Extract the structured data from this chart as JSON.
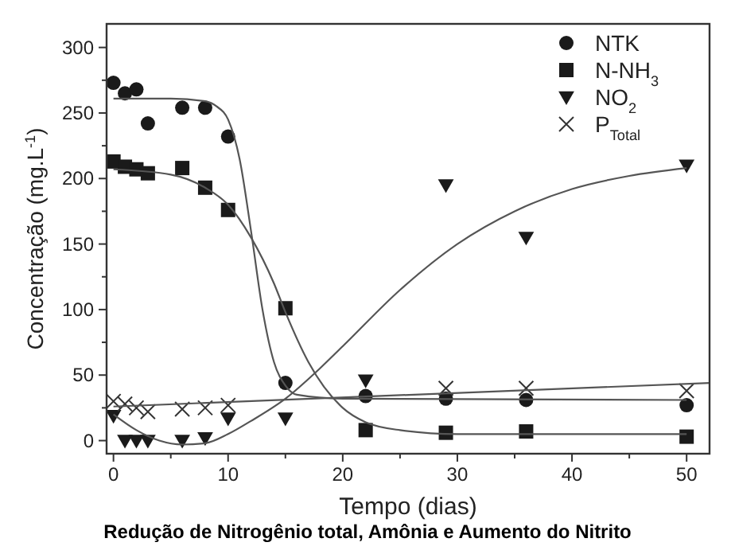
{
  "chart_data": {
    "type": "scatter",
    "title": "Redução de Nitrogênio total, Amônia e Aumento do Nitrito",
    "xlabel": "Tempo (dias)",
    "ylabel": "Concentração (mg.L$^{-1}$)",
    "xlim": [
      -0.6,
      52
    ],
    "ylim": [
      -10,
      318
    ],
    "xticks": [
      0,
      {
        "value": 5,
        "label": null
      },
      10,
      {
        "value": 15,
        "label": null
      },
      20,
      {
        "value": 25,
        "label": null
      },
      30,
      {
        "value": 35,
        "label": null
      },
      40,
      {
        "value": 45,
        "label": null
      },
      50
    ],
    "yticks": [
      0,
      {
        "value": 25,
        "label": null
      },
      50,
      {
        "value": 75,
        "label": null
      },
      100,
      {
        "value": 125,
        "label": null
      },
      150,
      {
        "value": 175,
        "label": null
      },
      200,
      {
        "value": 225,
        "label": null
      },
      250,
      {
        "value": 275,
        "label": null
      },
      300
    ],
    "grid": false,
    "legend": "top right",
    "series": [
      {
        "name": "NTK",
        "color": "#1a1a1a",
        "marker": "circle",
        "x": [
          0,
          1,
          2,
          3,
          6,
          8,
          10,
          15,
          22,
          29,
          36,
          50
        ],
        "values": [
          273,
          265,
          268,
          242,
          254,
          254,
          232,
          44,
          34,
          32,
          31,
          27
        ]
      },
      {
        "name": "N-NH$_{3}$",
        "color": "#1a1a1a",
        "marker": "square",
        "x": [
          0,
          1,
          2,
          3,
          6,
          8,
          10,
          15,
          22,
          29,
          36,
          50
        ],
        "values": [
          213,
          209,
          207,
          204,
          208,
          193,
          176,
          101,
          8,
          6,
          7,
          3
        ]
      },
      {
        "name": "NO$_{2}$",
        "color": "#1a1a1a",
        "marker": "triangle",
        "x": [
          0,
          1,
          2,
          3,
          6,
          8,
          10,
          15,
          22,
          29,
          36,
          50
        ],
        "values": [
          19,
          0,
          0,
          0,
          0,
          2,
          17,
          17,
          46,
          195,
          155,
          210
        ]
      },
      {
        "name": "P$_{Total}$",
        "color": "#333333",
        "marker": "cross",
        "x": [
          0,
          1,
          2,
          3,
          6,
          8,
          10,
          29,
          36,
          50
        ],
        "values": [
          30,
          28,
          25,
          22,
          24,
          25,
          27,
          40,
          40,
          38
        ]
      },
      {
        "type": "line",
        "color": "#555555",
        "marker": "none",
        "x": [
          0,
          5,
          8,
          9,
          10,
          11,
          12,
          13,
          14,
          15,
          16,
          20,
          50
        ],
        "values": [
          261,
          261,
          259,
          255,
          245,
          215,
          160,
          100,
          60,
          42,
          35,
          32,
          31
        ]
      },
      {
        "type": "line",
        "color": "#555555",
        "marker": "none",
        "x": [
          0,
          5,
          8,
          10,
          12,
          14,
          15,
          17,
          20,
          22,
          25,
          30,
          50
        ],
        "values": [
          207,
          203,
          193,
          180,
          155,
          120,
          98,
          60,
          25,
          14,
          8,
          5,
          5
        ]
      },
      {
        "type": "line",
        "color": "#555555",
        "marker": "none",
        "x": [
          0,
          2,
          4,
          6,
          8,
          10,
          12,
          15,
          18,
          20,
          25,
          30,
          35,
          40,
          45,
          50
        ],
        "values": [
          20,
          8,
          0,
          -3,
          -2,
          5,
          15,
          32,
          55,
          72,
          115,
          150,
          175,
          192,
          202,
          208
        ]
      },
      {
        "type": "line",
        "color": "#555555",
        "marker": "none",
        "x": [
          0,
          52
        ],
        "values": [
          26,
          44
        ]
      }
    ]
  }
}
